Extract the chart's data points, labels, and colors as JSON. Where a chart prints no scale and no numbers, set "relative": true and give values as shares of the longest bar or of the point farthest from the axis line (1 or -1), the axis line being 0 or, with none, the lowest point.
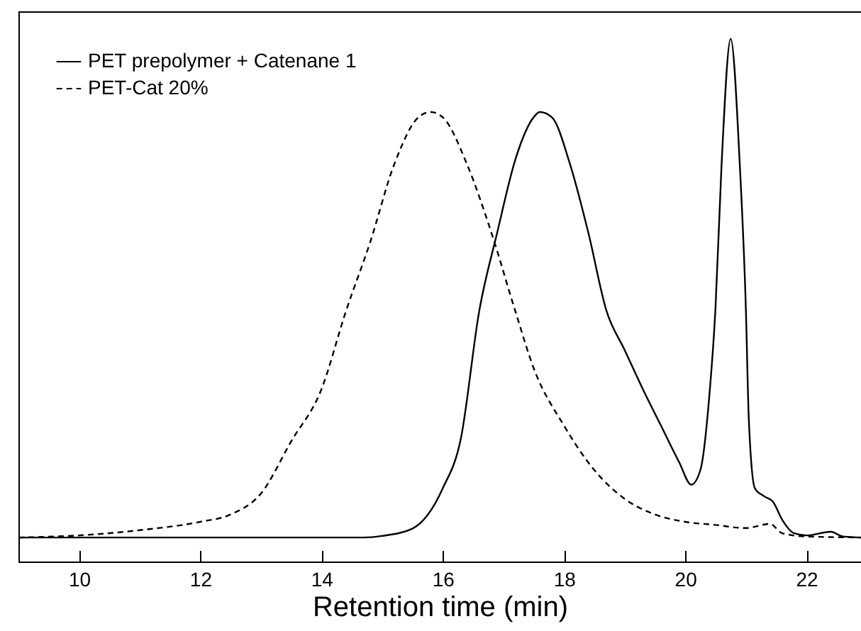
{
  "chart_data": {
    "type": "line",
    "relative": true,
    "xlabel": "Retention time (min)",
    "xlim": [
      9,
      22.9
    ],
    "xticks": [
      10,
      12,
      14,
      16,
      18,
      20,
      22
    ],
    "grid": false,
    "legend": "top left",
    "marker": "none",
    "series": [
      {
        "name": "PET prepolymer + Catenane 1",
        "color": "#000000",
        "line_style": "solid",
        "x": [
          9,
          14.7,
          15.0,
          15.5,
          16.0,
          16.3,
          16.6,
          16.9,
          17.2,
          17.5,
          17.6,
          17.8,
          18.1,
          18.4,
          18.7,
          19.0,
          19.3,
          19.6,
          19.9,
          20.1,
          20.25,
          20.4,
          20.5,
          20.6,
          20.75,
          20.9,
          21.0,
          21.05,
          21.15,
          21.3,
          21.45,
          21.6,
          21.8,
          22.0,
          22.4,
          22.6,
          22.9
        ],
        "values": [
          0.046,
          0.046,
          0.049,
          0.063,
          0.14,
          0.236,
          0.478,
          0.63,
          0.77,
          0.85,
          0.86,
          0.85,
          0.76,
          0.63,
          0.48,
          0.405,
          0.33,
          0.26,
          0.19,
          0.147,
          0.175,
          0.32,
          0.486,
          0.76,
          1,
          0.76,
          0.486,
          0.27,
          0.14,
          0.125,
          0.114,
          0.08,
          0.054,
          0.05,
          0.057,
          0.048,
          0.046
        ]
      },
      {
        "name": "PET-Cat 20%",
        "color": "#000000",
        "line_style": "dashed",
        "x": [
          9,
          10,
          11,
          12,
          12.5,
          13,
          13.5,
          14,
          14.4,
          14.8,
          15.2,
          15.6,
          15.8,
          16.0,
          16.4,
          16.8,
          17.2,
          17.5,
          18,
          18.5,
          19,
          19.5,
          20,
          20.5,
          21,
          21.4,
          21.6,
          22,
          22.9
        ],
        "values": [
          0.046,
          0.05,
          0.06,
          0.076,
          0.09,
          0.13,
          0.23,
          0.33,
          0.478,
          0.61,
          0.76,
          0.85,
          0.86,
          0.85,
          0.76,
          0.63,
          0.478,
          0.37,
          0.26,
          0.175,
          0.12,
          0.09,
          0.076,
          0.07,
          0.064,
          0.072,
          0.054,
          0.048,
          0.046
        ]
      }
    ]
  }
}
